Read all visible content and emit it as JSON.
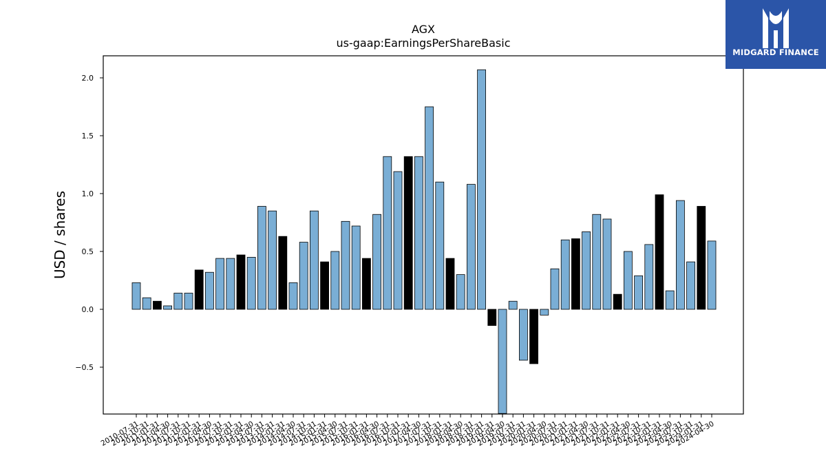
{
  "logo": {
    "text": "MIDGARD FINANCE"
  },
  "chart_data": {
    "type": "bar",
    "title": "AGX",
    "subtitle": "us-gaap:EarningsPerShareBasic",
    "xlabel": "",
    "ylabel": "USD / shares",
    "ylim": [
      -0.9,
      2.2
    ],
    "yticks": [
      -0.5,
      0.0,
      0.5,
      1.0,
      1.5,
      2.0
    ],
    "ytick_labels": [
      "−0.5",
      "0.0",
      "0.5",
      "1.0",
      "1.5",
      "2.0"
    ],
    "grid": false,
    "legend": "none",
    "colors": {
      "quarterly": "#7aaed5",
      "annual": "#000000",
      "edge": "#000000"
    },
    "categories": [
      "2010-07-31",
      "2010-10-31",
      "2011-01-31",
      "2011-04-30",
      "2011-07-31",
      "2011-10-31",
      "2012-01-31",
      "2012-04-30",
      "2012-07-31",
      "2012-10-31",
      "2013-01-31",
      "2013-04-30",
      "2013-07-31",
      "2013-10-31",
      "2014-01-31",
      "2014-04-30",
      "2014-07-31",
      "2014-10-31",
      "2015-01-31",
      "2015-04-30",
      "2015-07-31",
      "2015-10-31",
      "2016-01-31",
      "2016-04-30",
      "2016-07-31",
      "2016-10-31",
      "2017-01-31",
      "2017-04-30",
      "2017-07-31",
      "2017-10-31",
      "2018-01-31",
      "2018-04-30",
      "2018-07-31",
      "2018-10-31",
      "2019-01-31",
      "2019-04-30",
      "2019-07-31",
      "2019-10-31",
      "2020-01-31",
      "2020-04-30",
      "2020-07-31",
      "2020-10-31",
      "2021-01-31",
      "2021-04-30",
      "2021-07-31",
      "2021-10-31",
      "2022-01-31",
      "2022-04-30",
      "2022-07-31",
      "2022-10-31",
      "2023-01-31",
      "2023-04-30",
      "2023-07-31",
      "2023-10-31",
      "2024-01-31",
      "2024-04-30"
    ],
    "values": [
      0.23,
      0.1,
      0.07,
      0.03,
      0.14,
      0.14,
      0.34,
      0.32,
      0.44,
      0.44,
      0.47,
      0.45,
      0.89,
      0.85,
      0.63,
      0.23,
      0.58,
      0.85,
      0.41,
      0.5,
      0.76,
      0.72,
      0.44,
      0.82,
      1.32,
      1.19,
      1.32,
      1.32,
      1.75,
      1.1,
      0.44,
      0.3,
      1.08,
      2.07,
      -0.14,
      -1.15,
      0.07,
      -0.44,
      -0.47,
      -0.05,
      0.35,
      0.6,
      0.61,
      0.67,
      0.82,
      0.78,
      0.13,
      0.5,
      0.29,
      0.56,
      0.99,
      0.16,
      0.94,
      0.41,
      0.89,
      0.59
    ],
    "annual": [
      false,
      false,
      true,
      false,
      false,
      false,
      true,
      false,
      false,
      false,
      true,
      false,
      false,
      false,
      true,
      false,
      false,
      false,
      true,
      false,
      false,
      false,
      true,
      false,
      false,
      false,
      true,
      false,
      false,
      false,
      true,
      false,
      false,
      false,
      true,
      false,
      false,
      false,
      true,
      false,
      false,
      false,
      true,
      false,
      false,
      false,
      true,
      false,
      false,
      false,
      true,
      false,
      false,
      false,
      true,
      false
    ]
  }
}
